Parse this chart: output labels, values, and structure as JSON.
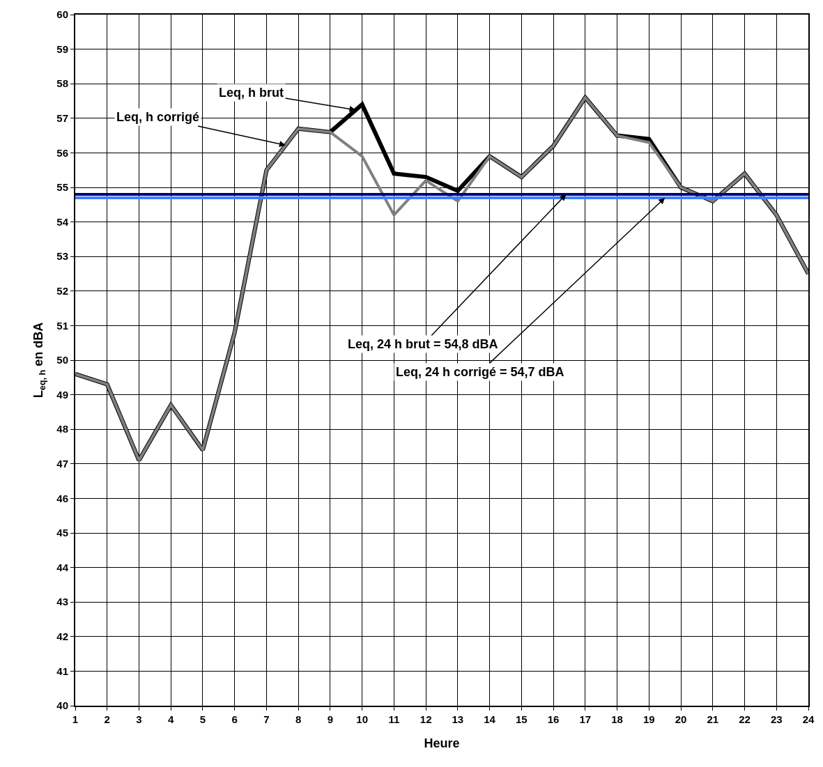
{
  "chart_data": {
    "type": "line",
    "xlabel": "Heure",
    "ylabel": "L$_{eq, h}$ en dBA",
    "x": [
      1,
      2,
      3,
      4,
      5,
      6,
      7,
      8,
      9,
      10,
      11,
      12,
      13,
      14,
      15,
      16,
      17,
      18,
      19,
      20,
      21,
      22,
      23,
      24
    ],
    "series": [
      {
        "color": "#000000",
        "values": [
          49.6,
          49.3,
          47.1,
          48.7,
          47.4,
          50.8,
          55.5,
          56.7,
          56.6,
          57.4,
          55.4,
          55.3,
          54.9,
          55.9,
          55.3,
          56.2,
          57.6,
          56.5,
          56.4,
          55.0,
          54.6,
          55.4,
          54.2,
          52.5
        ]
      },
      {
        "color": "#808080",
        "values": [
          49.6,
          49.3,
          47.1,
          48.7,
          47.4,
          50.8,
          55.5,
          56.7,
          56.6,
          55.9,
          54.2,
          55.2,
          54.6,
          55.9,
          55.3,
          56.2,
          57.6,
          56.5,
          56.3,
          55.0,
          54.6,
          55.4,
          54.2,
          52.5
        ]
      }
    ],
    "ref_lines": [
      {
        "axis": "y",
        "value": 54.8,
        "color": "#000080"
      },
      {
        "axis": "y",
        "value": 54.7,
        "color": "#3f7fff"
      }
    ],
    "annotations": [
      {
        "text": "Leq, h brut",
        "x": 9.8,
        "y": 57.24
      },
      {
        "text": "Leq, h corrigé",
        "x": 7.6,
        "y": 56.22
      },
      {
        "text": "Leq, 24 h brut = 54,8 dBA",
        "x": 16.4,
        "y": 54.8
      },
      {
        "text": "Leq, 24 h corrigé = 54,7 dBA",
        "x": 19.5,
        "y": 54.7
      }
    ],
    "xlim": [
      1,
      24
    ],
    "xticks": [
      1,
      2,
      3,
      4,
      5,
      6,
      7,
      8,
      9,
      10,
      11,
      12,
      13,
      14,
      15,
      16,
      17,
      18,
      19,
      20,
      21,
      22,
      23,
      24
    ],
    "ylim": [
      40,
      60
    ],
    "yticks": [
      40,
      41,
      42,
      43,
      44,
      45,
      46,
      47,
      48,
      49,
      50,
      51,
      52,
      53,
      54,
      55,
      56,
      57,
      58,
      59,
      60
    ],
    "grid": true,
    "marker": "none",
    "line_style": "solid"
  }
}
